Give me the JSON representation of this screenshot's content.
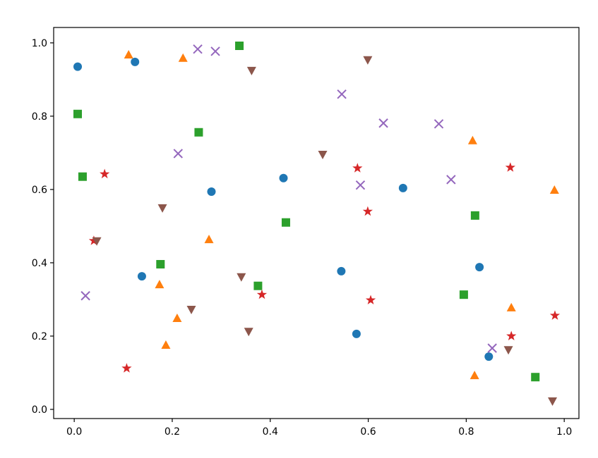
{
  "chart_data": {
    "type": "scatter",
    "xlim": [
      -0.042,
      1.03
    ],
    "ylim": [
      -0.025,
      1.042
    ],
    "xticks": [
      {
        "value": 0,
        "label": "0.0"
      },
      0.2,
      0.4,
      0.6,
      0.8,
      {
        "value": 1,
        "label": "1.0"
      }
    ],
    "yticks": [
      {
        "value": 0,
        "label": "0.0"
      },
      0.2,
      0.4,
      0.6,
      0.8,
      {
        "value": 1,
        "label": "1.0"
      }
    ],
    "grid": false,
    "series": [
      {
        "color": "#1f77b4",
        "marker": "o",
        "x": [
          0.007,
          0.124,
          0.138,
          0.28,
          0.427,
          0.545,
          0.576,
          0.671,
          0.827,
          0.846
        ],
        "values": [
          0.935,
          0.948,
          0.363,
          0.594,
          0.631,
          0.377,
          0.206,
          0.604,
          0.388,
          0.144
        ]
      },
      {
        "color": "#ff7f0e",
        "marker": "^",
        "x": [
          0.111,
          0.222,
          0.275,
          0.174,
          0.21,
          0.187,
          0.813,
          0.98,
          0.892,
          0.817
        ],
        "values": [
          0.967,
          0.958,
          0.463,
          0.34,
          0.248,
          0.175,
          0.733,
          0.598,
          0.277,
          0.092
        ]
      },
      {
        "color": "#2ca02c",
        "marker": "s",
        "x": [
          0.007,
          0.017,
          0.337,
          0.254,
          0.176,
          0.375,
          0.432,
          0.818,
          0.795,
          0.941
        ],
        "values": [
          0.806,
          0.635,
          0.992,
          0.756,
          0.396,
          0.337,
          0.51,
          0.529,
          0.313,
          0.088
        ]
      },
      {
        "color": "#d62728",
        "marker": "*",
        "x": [
          0.062,
          0.04,
          0.107,
          0.383,
          0.578,
          0.599,
          0.605,
          0.89,
          0.892,
          0.981
        ],
        "values": [
          0.642,
          0.46,
          0.112,
          0.313,
          0.658,
          0.54,
          0.298,
          0.66,
          0.2,
          0.256
        ]
      },
      {
        "color": "#9467bd",
        "marker": "x",
        "x": [
          0.023,
          0.212,
          0.252,
          0.288,
          0.546,
          0.584,
          0.631,
          0.744,
          0.769,
          0.853
        ],
        "values": [
          0.31,
          0.698,
          0.983,
          0.977,
          0.86,
          0.612,
          0.781,
          0.779,
          0.627,
          0.167
        ]
      },
      {
        "color": "#8c564b",
        "marker": "v",
        "x": [
          0.046,
          0.18,
          0.239,
          0.341,
          0.356,
          0.362,
          0.507,
          0.599,
          0.886,
          0.976
        ],
        "values": [
          0.46,
          0.55,
          0.273,
          0.362,
          0.213,
          0.925,
          0.696,
          0.954,
          0.163,
          0.023
        ]
      }
    ]
  }
}
